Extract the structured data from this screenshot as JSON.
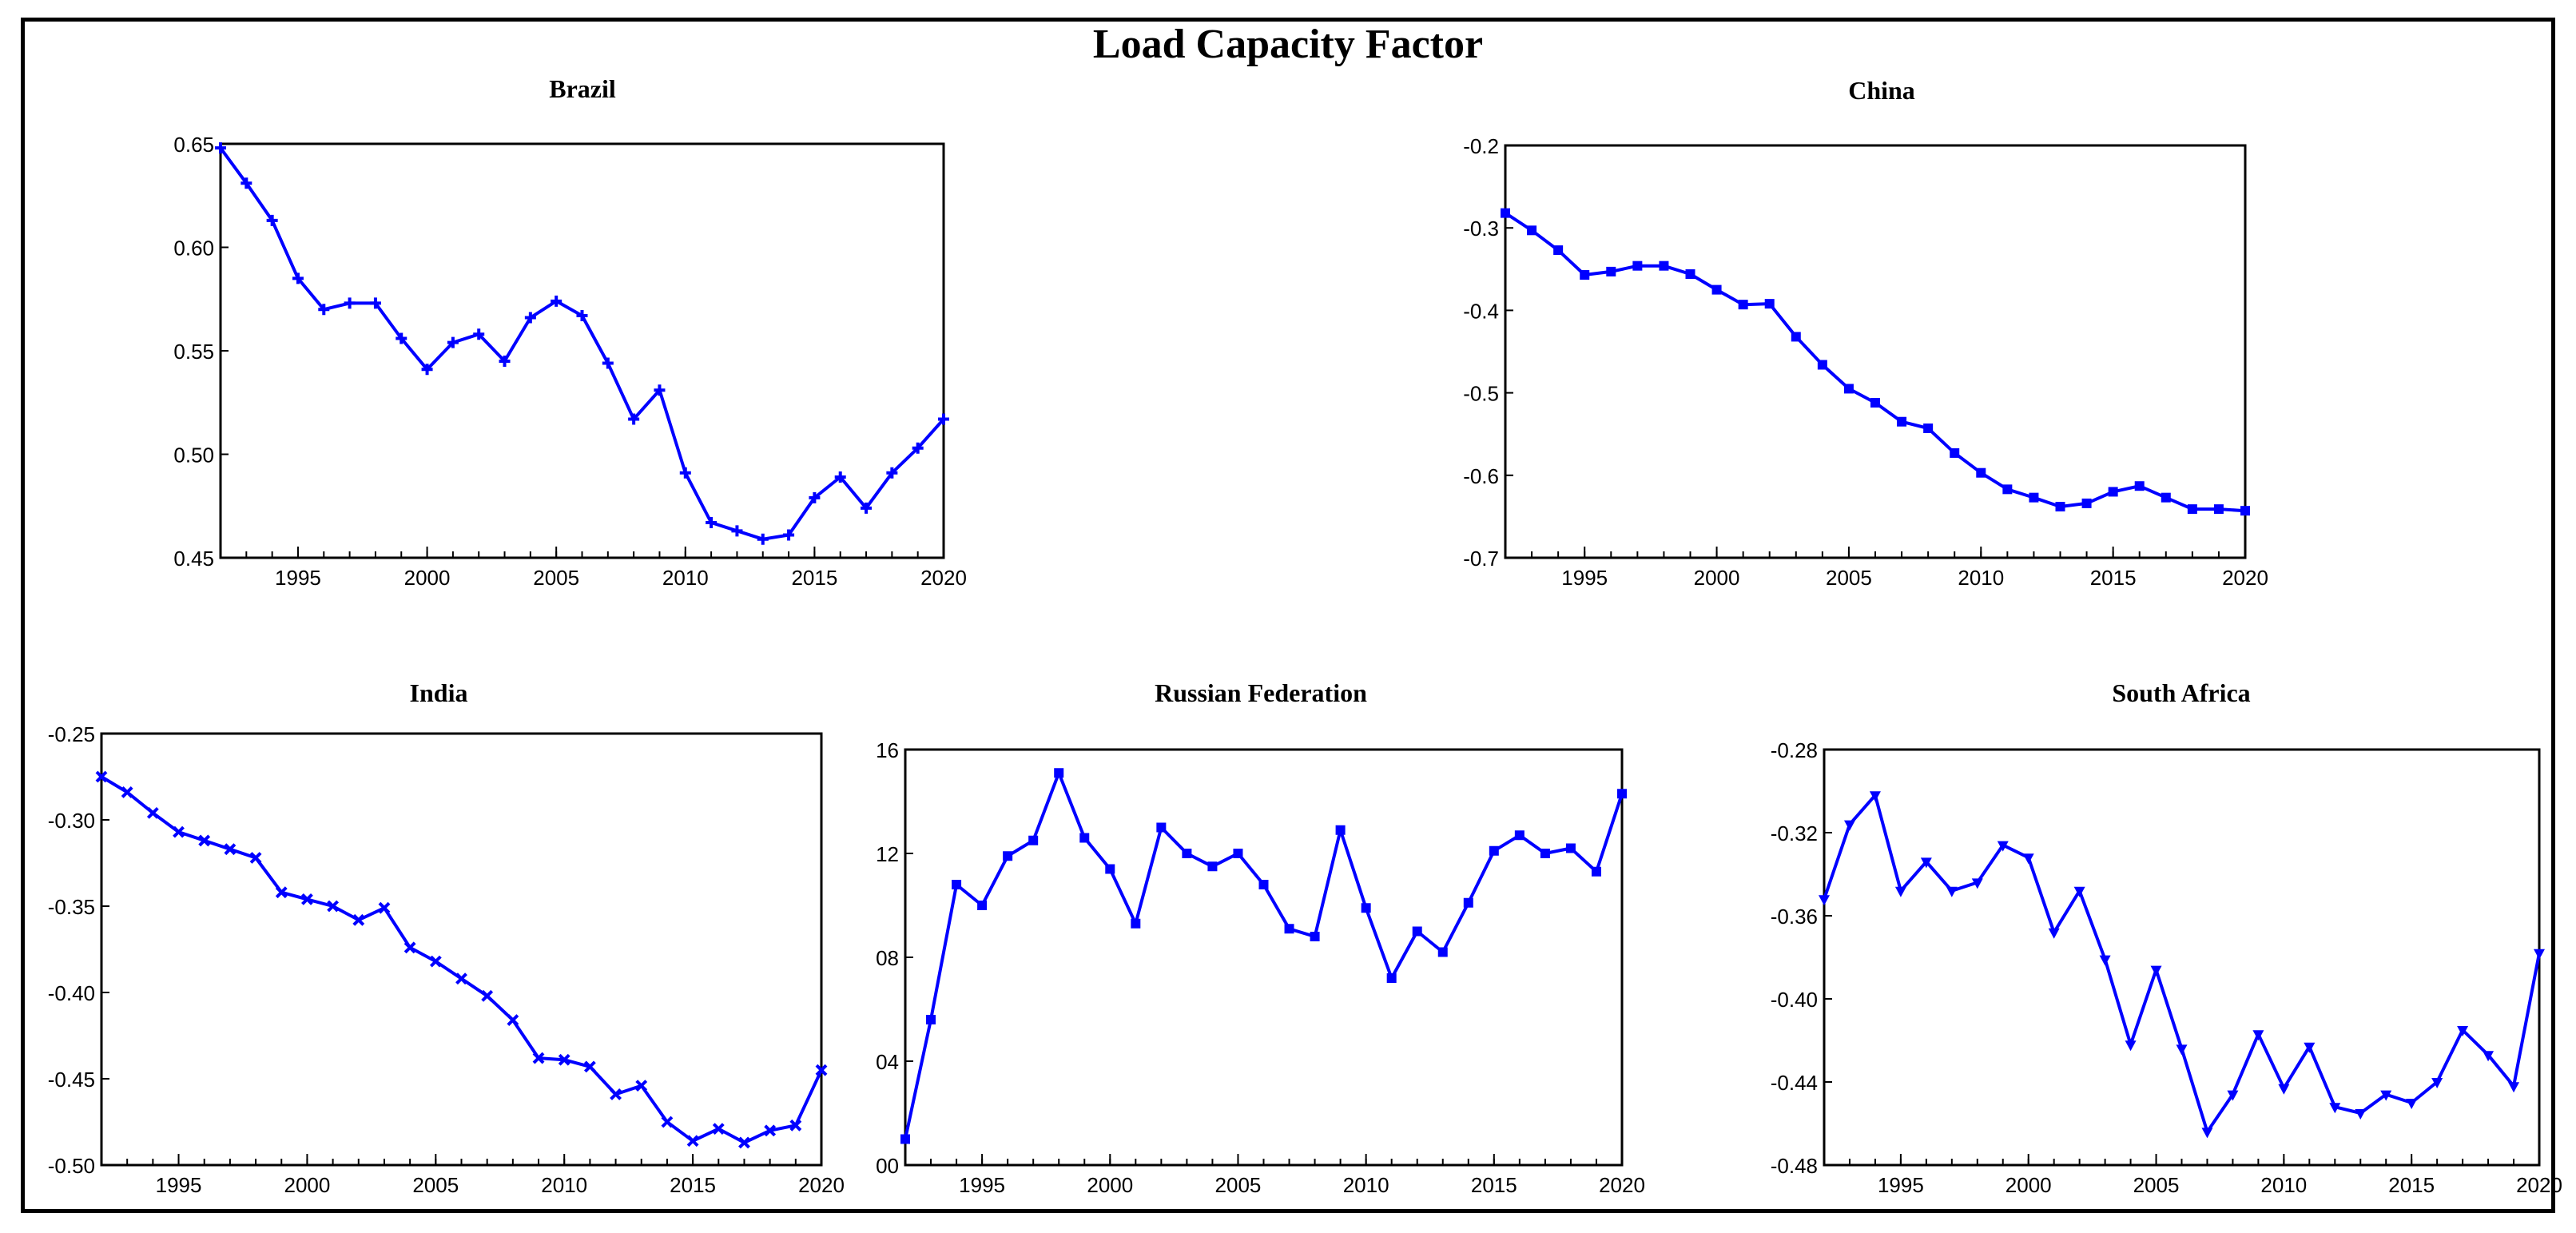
{
  "figure_title": "Load Capacity Factor",
  "chart_data": [
    {
      "type": "line",
      "title": "Brazil",
      "color": "#0000ff",
      "marker": "cross",
      "x": [
        1992,
        1993,
        1994,
        1995,
        1996,
        1997,
        1998,
        1999,
        2000,
        2001,
        2002,
        2003,
        2004,
        2005,
        2006,
        2007,
        2008,
        2009,
        2010,
        2011,
        2012,
        2013,
        2014,
        2015,
        2016,
        2017,
        2018,
        2019,
        2020
      ],
      "values": [
        0.648,
        0.631,
        0.613,
        0.585,
        0.57,
        0.573,
        0.573,
        0.556,
        0.541,
        0.554,
        0.558,
        0.545,
        0.566,
        0.574,
        0.567,
        0.544,
        0.517,
        0.531,
        0.491,
        0.467,
        0.463,
        0.459,
        0.461,
        0.479,
        0.489,
        0.474,
        0.491,
        0.503,
        0.517
      ],
      "ylim": [
        0.45,
        0.65
      ],
      "yticks": [
        "0.65",
        "0.60",
        "0.55",
        "0.50",
        "0.45"
      ],
      "xticks": [
        "1995",
        "2000",
        "2005",
        "2010",
        "2015",
        "2020"
      ]
    },
    {
      "type": "line",
      "title": "China",
      "color": "#0000ff",
      "marker": "square",
      "x": [
        1992,
        1993,
        1994,
        1995,
        1996,
        1997,
        1998,
        1999,
        2000,
        2001,
        2002,
        2003,
        2004,
        2005,
        2006,
        2007,
        2008,
        2009,
        2010,
        2011,
        2012,
        2013,
        2014,
        2015,
        2016,
        2017,
        2018,
        2019,
        2020
      ],
      "values": [
        -0.282,
        -0.303,
        -0.327,
        -0.357,
        -0.353,
        -0.346,
        -0.346,
        -0.356,
        -0.375,
        -0.393,
        -0.392,
        -0.432,
        -0.466,
        -0.495,
        -0.512,
        -0.535,
        -0.543,
        -0.573,
        -0.597,
        -0.617,
        -0.627,
        -0.638,
        -0.634,
        -0.62,
        -0.613,
        -0.627,
        -0.641,
        -0.641,
        -0.643
      ],
      "ylim": [
        -0.7,
        -0.2
      ],
      "yticks": [
        "-0.2",
        "-0.3",
        "-0.4",
        "-0.5",
        "-0.6",
        "-0.7"
      ],
      "xticks": [
        "1995",
        "2000",
        "2005",
        "2010",
        "2015",
        "2020"
      ]
    },
    {
      "type": "line",
      "title": "India",
      "color": "#0000ff",
      "marker": "x",
      "x": [
        1992,
        1993,
        1994,
        1995,
        1996,
        1997,
        1998,
        1999,
        2000,
        2001,
        2002,
        2003,
        2004,
        2005,
        2006,
        2007,
        2008,
        2009,
        2010,
        2011,
        2012,
        2013,
        2014,
        2015,
        2016,
        2017,
        2018,
        2019,
        2020
      ],
      "values": [
        -0.275,
        -0.284,
        -0.296,
        -0.307,
        -0.312,
        -0.317,
        -0.322,
        -0.342,
        -0.346,
        -0.35,
        -0.358,
        -0.351,
        -0.374,
        -0.382,
        -0.392,
        -0.402,
        -0.416,
        -0.438,
        -0.439,
        -0.443,
        -0.459,
        -0.454,
        -0.475,
        -0.486,
        -0.479,
        -0.487,
        -0.48,
        -0.477,
        -0.445
      ],
      "ylim": [
        -0.5,
        -0.25
      ],
      "yticks": [
        "-0.25",
        "-0.30",
        "-0.35",
        "-0.40",
        "-0.45",
        "-0.50"
      ],
      "xticks": [
        "1995",
        "2000",
        "2005",
        "2010",
        "2015",
        "2020"
      ]
    },
    {
      "type": "line",
      "title": "Russian Federation",
      "color": "#0000ff",
      "marker": "square",
      "x": [
        1992,
        1993,
        1994,
        1995,
        1996,
        1997,
        1998,
        1999,
        2000,
        2001,
        2002,
        2003,
        2004,
        2005,
        2006,
        2007,
        2008,
        2009,
        2010,
        2011,
        2012,
        2013,
        2014,
        2015,
        2016,
        2017,
        2018,
        2019,
        2020
      ],
      "values": [
        0.01,
        0.056,
        0.108,
        0.1,
        0.119,
        0.125,
        0.151,
        0.126,
        0.114,
        0.093,
        0.13,
        0.12,
        0.115,
        0.12,
        0.108,
        0.091,
        0.088,
        0.129,
        0.099,
        0.072,
        0.09,
        0.082,
        0.101,
        0.121,
        0.127,
        0.12,
        0.122,
        0.113,
        0.143
      ],
      "ylim": [
        0.0,
        0.16
      ],
      "yticks": [
        "16",
        "12",
        "08",
        "04",
        "00"
      ],
      "xticks": [
        "1995",
        "2000",
        "2005",
        "2010",
        "2015",
        "2020"
      ]
    },
    {
      "type": "line",
      "title": "South Africa",
      "color": "#0000ff",
      "marker": "triangle-down",
      "x": [
        1992,
        1993,
        1994,
        1995,
        1996,
        1997,
        1998,
        1999,
        2000,
        2001,
        2002,
        2003,
        2004,
        2005,
        2006,
        2007,
        2008,
        2009,
        2010,
        2011,
        2012,
        2013,
        2014,
        2015,
        2016,
        2017,
        2018,
        2019,
        2020
      ],
      "values": [
        -0.352,
        -0.316,
        -0.302,
        -0.348,
        -0.334,
        -0.348,
        -0.344,
        -0.326,
        -0.332,
        -0.368,
        -0.348,
        -0.381,
        -0.422,
        -0.386,
        -0.424,
        -0.464,
        -0.446,
        -0.417,
        -0.443,
        -0.423,
        -0.452,
        -0.455,
        -0.446,
        -0.45,
        -0.44,
        -0.415,
        -0.427,
        -0.442,
        -0.378
      ],
      "ylim": [
        -0.48,
        -0.28
      ],
      "yticks": [
        "-0.28",
        "-0.32",
        "-0.36",
        "-0.40",
        "-0.44",
        "-0.48"
      ],
      "xticks": [
        "1995",
        "2000",
        "2005",
        "2010",
        "2015",
        "2020"
      ]
    }
  ]
}
